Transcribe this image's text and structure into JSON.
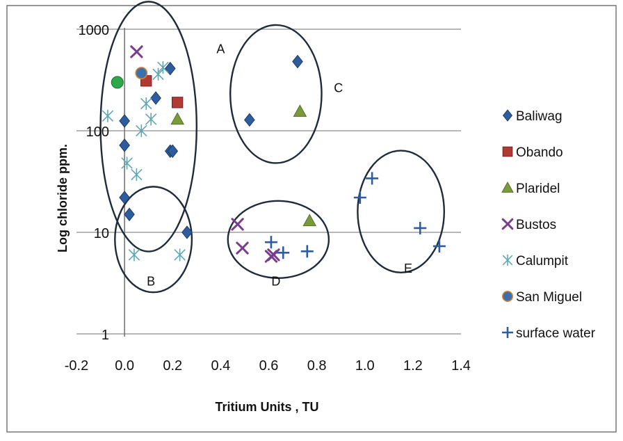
{
  "chart_data": {
    "type": "scatter",
    "xlabel": "Tritium Units , TU",
    "ylabel": "Log  chloride ppm.",
    "xlim": [
      -0.2,
      1.4
    ],
    "ylim": [
      1,
      1000
    ],
    "y_scale": "log",
    "x_ticks": [
      "-0.2",
      "0.0",
      "0.2",
      "0.4",
      "0.6",
      "0.8",
      "1.0",
      "1.2",
      "1.4"
    ],
    "y_ticks": [
      "1",
      "10",
      "100",
      "1000"
    ],
    "grid": "horizontal",
    "legend_position": "right",
    "series": [
      {
        "name": "Baliwag",
        "marker": "diamond",
        "color": "#2e5d9e",
        "points": [
          [
            0.0,
            125
          ],
          [
            0.0,
            72
          ],
          [
            0.13,
            210
          ],
          [
            0.19,
            410
          ],
          [
            0.19,
            63
          ],
          [
            0.2,
            63
          ],
          [
            0.72,
            480
          ],
          [
            0.52,
            128
          ],
          [
            0.0,
            22
          ],
          [
            0.02,
            15
          ],
          [
            0.26,
            10
          ]
        ]
      },
      {
        "name": "Obando",
        "marker": "square",
        "color": "#b23a35",
        "points": [
          [
            0.09,
            310
          ],
          [
            0.22,
            190
          ]
        ]
      },
      {
        "name": "Plaridel",
        "marker": "triangle",
        "color": "#7a9a3c",
        "points": [
          [
            0.22,
            130
          ],
          [
            0.73,
            155
          ],
          [
            0.77,
            13
          ]
        ]
      },
      {
        "name": "Bustos",
        "marker": "x",
        "color": "#7a3d8e",
        "points": [
          [
            0.05,
            600
          ],
          [
            0.47,
            12
          ],
          [
            0.49,
            7
          ],
          [
            0.61,
            5.8
          ],
          [
            0.62,
            6
          ]
        ]
      },
      {
        "name": "Calumpit",
        "marker": "asterisk",
        "color": "#5fa7b5",
        "points": [
          [
            -0.07,
            140
          ],
          [
            0.07,
            100
          ],
          [
            0.11,
            130
          ],
          [
            0.09,
            185
          ],
          [
            0.14,
            360
          ],
          [
            0.16,
            420
          ],
          [
            0.01,
            48
          ],
          [
            0.05,
            37
          ],
          [
            0.04,
            6
          ],
          [
            0.23,
            6
          ]
        ]
      },
      {
        "name": "San Miguel",
        "marker": "circle",
        "color": "#3a6fb0",
        "points": [
          [
            0.07,
            370
          ]
        ]
      },
      {
        "name": "surface water",
        "marker": "plus",
        "color": "#2f5c9c",
        "points": [
          [
            0.61,
            8
          ],
          [
            0.66,
            6.3
          ],
          [
            0.76,
            6.5
          ],
          [
            0.98,
            22
          ],
          [
            1.03,
            34
          ],
          [
            1.23,
            11
          ],
          [
            1.31,
            7.3
          ]
        ]
      }
    ],
    "unlabeled_marker": {
      "marker": "circle",
      "color": "#2fa84a",
      "point": [
        -0.03,
        300
      ]
    },
    "groups": [
      {
        "label": "A",
        "center": [
          0.1,
          110
        ],
        "rx": 0.2,
        "ry_decades": 1.23,
        "label_at": [
          0.4,
          580
        ]
      },
      {
        "label": "B",
        "center": [
          0.12,
          8.5
        ],
        "rx": 0.16,
        "ry_decades": 0.52,
        "label_at": [
          0.11,
          3.0
        ]
      },
      {
        "label": "C",
        "center": [
          0.63,
          230
        ],
        "rx": 0.19,
        "ry_decades": 0.68,
        "label_at": [
          0.89,
          240
        ]
      },
      {
        "label": "D",
        "center": [
          0.64,
          8.5
        ],
        "rx": 0.21,
        "ry_decades": 0.38,
        "label_at": [
          0.63,
          3.0
        ]
      },
      {
        "label": "E",
        "center": [
          1.15,
          16
        ],
        "rx": 0.18,
        "ry_decades": 0.6,
        "label_at": [
          1.18,
          4.0
        ]
      }
    ]
  }
}
